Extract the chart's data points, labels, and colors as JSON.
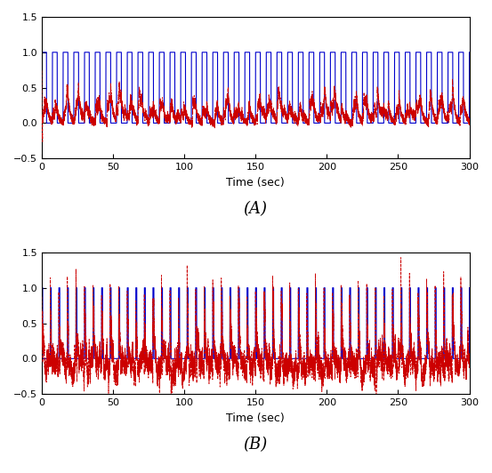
{
  "xlim": [
    0,
    300
  ],
  "ylim_A": [
    -0.5,
    1.5
  ],
  "ylim_B": [
    -0.5,
    1.5
  ],
  "xticks": [
    0,
    50,
    100,
    150,
    200,
    250,
    300
  ],
  "yticks_A": [
    -0.5,
    0,
    0.5,
    1,
    1.5
  ],
  "yticks_B": [
    -0.5,
    0,
    0.5,
    1,
    1.5
  ],
  "xlabel": "Time (sec)",
  "label_A": "(A)",
  "label_B": "(B)",
  "blue_color": "#0000cc",
  "red_color": "#cc0000",
  "bg_color": "#ffffff",
  "n_cycles_A": 40,
  "duty_A": 0.45,
  "n_cycles_B": 50,
  "duty_B": 0.12,
  "seed": 42,
  "figsize": [
    5.53,
    5.32
  ],
  "dpi": 100
}
